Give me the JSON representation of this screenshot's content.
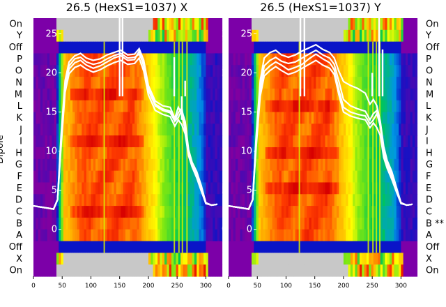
{
  "chart_data": [
    {
      "type": "heatmap",
      "title": "26.5 (HexS1=1037) X",
      "ylabel": "Dipole",
      "xlim": [
        0,
        325
      ],
      "xticks": [
        0,
        50,
        100,
        150,
        200,
        250,
        300
      ],
      "row_labels": [
        "On",
        "Y",
        "Off",
        "P",
        "O",
        "N",
        "M",
        "L",
        "K",
        "J",
        "I",
        "H",
        "G",
        "F",
        "E",
        "D",
        "C",
        "B",
        "A",
        "Off",
        "X",
        "On"
      ],
      "overlay_ylim": [
        -6,
        27
      ],
      "overlay_yticks": [
        0,
        5,
        10,
        15,
        20,
        25
      ],
      "series": [
        {
          "x": [
            0,
            35,
            42,
            48,
            55,
            62,
            72,
            82,
            92,
            104,
            116,
            128,
            140,
            152,
            164,
            176,
            184,
            192,
            200,
            212,
            225,
            238,
            246,
            252,
            258,
            264,
            270,
            276,
            284,
            292,
            300,
            310,
            320
          ],
          "y": [
            3,
            2.6,
            3.8,
            11,
            18,
            20.5,
            21.3,
            21.6,
            21.0,
            20.6,
            20.9,
            21.4,
            21.9,
            22.2,
            21.6,
            21.7,
            22.8,
            20.8,
            17.8,
            15.8,
            15.2,
            14.9,
            13.8,
            14.3,
            15.2,
            13.8,
            10.2,
            8.6,
            7.4,
            5.6,
            3.4,
            3.1,
            3.2
          ]
        },
        {
          "x": [
            0,
            35,
            42,
            48,
            55,
            62,
            72,
            82,
            92,
            104,
            116,
            128,
            140,
            152,
            164,
            176,
            184,
            192,
            200,
            212,
            225,
            238,
            246,
            252,
            258,
            264,
            270,
            276,
            284,
            292,
            300,
            310,
            320
          ],
          "y": [
            3,
            2.6,
            3.8,
            12,
            19,
            21.4,
            22.2,
            22.5,
            21.9,
            21.6,
            21.8,
            22.3,
            22.6,
            22.9,
            22.3,
            22.4,
            23.1,
            21.6,
            18.4,
            16.4,
            15.8,
            15.6,
            14.2,
            15.6,
            14.8,
            12.6,
            9.8,
            8.2,
            6.9,
            5.1,
            3.3,
            3.1,
            3.2
          ]
        },
        {
          "x": [
            0,
            35,
            42,
            48,
            55,
            62,
            72,
            82,
            92,
            104,
            116,
            128,
            140,
            152,
            164,
            176,
            184,
            192,
            200,
            212,
            225,
            238,
            246,
            252,
            258,
            264,
            270,
            276,
            284,
            292,
            300,
            310,
            320
          ],
          "y": [
            3,
            2.6,
            3.8,
            11.5,
            18.5,
            20.9,
            21.8,
            22.0,
            21.4,
            21.1,
            21.3,
            21.8,
            22.2,
            22.5,
            21.9,
            22.0,
            22.4,
            21.2,
            18.1,
            16.0,
            15.4,
            15.1,
            13.9,
            14.9,
            15.5,
            13.1,
            10.0,
            8.4,
            7.1,
            5.3,
            3.4,
            3.1,
            3.2
          ]
        },
        {
          "x": [
            0,
            35,
            42,
            48,
            55,
            62,
            72,
            82,
            92,
            104,
            116,
            128,
            140,
            152,
            164,
            176,
            184,
            192,
            200,
            212,
            225,
            238,
            246,
            252,
            258,
            264,
            270,
            276,
            284,
            292,
            300,
            310,
            320
          ],
          "y": [
            3,
            2.6,
            3.8,
            10.5,
            17.5,
            19.9,
            20.7,
            21.0,
            20.5,
            20.1,
            20.4,
            20.9,
            21.3,
            21.6,
            21.1,
            21.2,
            21.9,
            20.2,
            17.2,
            15.2,
            14.7,
            14.4,
            13.2,
            14.0,
            13.4,
            12.2,
            9.4,
            8.0,
            6.6,
            4.9,
            3.3,
            3.1,
            3.2
          ]
        }
      ]
    },
    {
      "type": "heatmap",
      "title": "26.5 (HexS1=1037) Y",
      "xlim": [
        0,
        325
      ],
      "xticks": [
        0,
        50,
        100,
        150,
        200,
        250,
        300
      ],
      "row_labels": [
        "On",
        "Y",
        "Off",
        "P",
        "O",
        "N",
        "M",
        "L",
        "K",
        "J",
        "I",
        "H",
        "G",
        "F",
        "E",
        "D",
        "C",
        "B **",
        "A",
        "Off",
        "X",
        "On"
      ],
      "overlay_ylim": [
        -6,
        27
      ],
      "overlay_yticks": [
        0,
        5,
        10,
        15,
        20,
        25
      ],
      "series": [
        {
          "x": [
            0,
            35,
            42,
            48,
            55,
            62,
            72,
            82,
            92,
            104,
            116,
            128,
            140,
            152,
            164,
            176,
            184,
            192,
            200,
            212,
            225,
            238,
            246,
            252,
            258,
            264,
            270,
            276,
            284,
            292,
            300,
            310,
            320
          ],
          "y": [
            3,
            2.6,
            3.8,
            11,
            17.5,
            20.2,
            20.9,
            21.4,
            21.0,
            20.4,
            20.7,
            21.1,
            21.8,
            22.4,
            21.8,
            21.3,
            20.4,
            17.8,
            15.6,
            15.0,
            14.7,
            14.5,
            13.5,
            14.0,
            14.8,
            13.2,
            9.8,
            8.2,
            6.8,
            5.1,
            3.4,
            3.1,
            3.2
          ]
        },
        {
          "x": [
            0,
            35,
            42,
            48,
            55,
            62,
            72,
            82,
            92,
            104,
            116,
            128,
            140,
            152,
            164,
            176,
            184,
            192,
            200,
            212,
            225,
            238,
            246,
            252,
            258,
            264,
            270,
            276,
            284,
            292,
            300,
            310,
            320
          ],
          "y": [
            3,
            2.6,
            3.8,
            12,
            19,
            21.9,
            22.6,
            22.9,
            22.3,
            22.0,
            22.3,
            22.8,
            23.2,
            23.6,
            23.0,
            22.6,
            21.9,
            20.2,
            18.9,
            18.4,
            18.0,
            17.4,
            16.0,
            16.6,
            15.8,
            13.8,
            10.6,
            8.8,
            7.4,
            5.4,
            3.4,
            3.1,
            3.2
          ]
        },
        {
          "x": [
            0,
            35,
            42,
            48,
            55,
            62,
            72,
            82,
            92,
            104,
            116,
            128,
            140,
            152,
            164,
            176,
            184,
            192,
            200,
            212,
            225,
            238,
            246,
            252,
            258,
            264,
            270,
            276,
            284,
            292,
            300,
            310,
            320
          ],
          "y": [
            3,
            2.6,
            3.8,
            11.5,
            18.2,
            20.9,
            21.6,
            22.0,
            21.5,
            21.2,
            21.4,
            21.9,
            22.4,
            22.9,
            22.3,
            21.9,
            21.1,
            18.9,
            16.6,
            15.8,
            15.4,
            15.1,
            14.0,
            14.8,
            15.2,
            13.4,
            10.1,
            8.5,
            7.0,
            5.2,
            3.4,
            3.1,
            3.2
          ]
        },
        {
          "x": [
            0,
            35,
            42,
            48,
            55,
            62,
            72,
            82,
            92,
            104,
            116,
            128,
            140,
            152,
            164,
            176,
            184,
            192,
            200,
            212,
            225,
            238,
            246,
            252,
            258,
            264,
            270,
            276,
            284,
            292,
            300,
            310,
            320
          ],
          "y": [
            3,
            2.6,
            3.8,
            10.5,
            17.0,
            19.6,
            20.3,
            20.8,
            20.3,
            19.8,
            20.1,
            20.6,
            21.1,
            21.6,
            21.0,
            20.6,
            19.8,
            17.2,
            15.0,
            14.5,
            14.2,
            14.0,
            13.0,
            13.6,
            13.0,
            12.0,
            9.2,
            7.8,
            6.4,
            4.8,
            3.3,
            3.1,
            3.2
          ]
        }
      ]
    }
  ]
}
